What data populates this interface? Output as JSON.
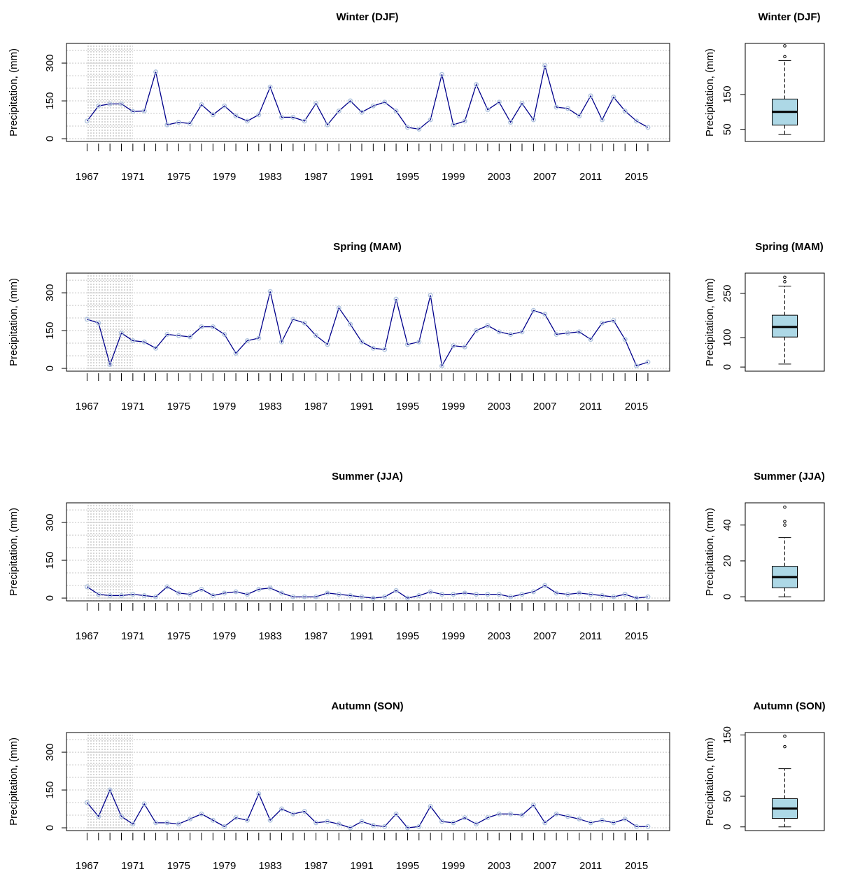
{
  "chart_data": [
    {
      "type": "line",
      "title": "Winter (DJF)",
      "ylabel": "Precipitation, (mm)",
      "x": [
        1967,
        1968,
        1969,
        1970,
        1971,
        1972,
        1973,
        1974,
        1975,
        1976,
        1977,
        1978,
        1979,
        1980,
        1981,
        1982,
        1983,
        1984,
        1985,
        1986,
        1987,
        1988,
        1989,
        1990,
        1991,
        1992,
        1993,
        1994,
        1995,
        1996,
        1997,
        1998,
        1999,
        2000,
        2001,
        2002,
        2003,
        2004,
        2005,
        2006,
        2007,
        2008,
        2009,
        2010,
        2011,
        2012,
        2013,
        2014,
        2015,
        2016
      ],
      "values": [
        70,
        130,
        138,
        138,
        108,
        110,
        265,
        55,
        65,
        60,
        135,
        95,
        130,
        90,
        70,
        95,
        205,
        85,
        85,
        70,
        140,
        55,
        110,
        150,
        105,
        130,
        145,
        110,
        45,
        38,
        75,
        255,
        55,
        70,
        215,
        115,
        145,
        65,
        140,
        75,
        290,
        125,
        120,
        90,
        170,
        75,
        165,
        110,
        70,
        45
      ],
      "color": "#00008b",
      "marker_color": "#b0c4de",
      "xlim": [
        1965.2,
        2017.9
      ],
      "ylim": [
        -11,
        378
      ],
      "xticks": [
        1967,
        1971,
        1975,
        1979,
        1983,
        1987,
        1991,
        1995,
        1999,
        2003,
        2007,
        2011,
        2015
      ],
      "yticks": [
        0,
        150,
        300
      ],
      "ygrid": [
        0,
        50,
        100,
        150,
        200,
        250,
        300,
        350
      ],
      "shaded_xrange": [
        1967,
        1971
      ]
    },
    {
      "type": "box",
      "title": "Winter (DJF)",
      "ylabel": "Precipitation, (mm)",
      "min": 35,
      "q1": 62,
      "median": 100,
      "q3": 137,
      "max": 248,
      "outliers": [
        259,
        290
      ],
      "color": "#add8e6",
      "ylim": [
        15,
        297
      ],
      "yticks": [
        50,
        150
      ]
    },
    {
      "type": "line",
      "title": "Spring (MAM)",
      "ylabel": "Precipitation, (mm)",
      "x": [
        1967,
        1968,
        1969,
        1970,
        1971,
        1972,
        1973,
        1974,
        1975,
        1976,
        1977,
        1978,
        1979,
        1980,
        1981,
        1982,
        1983,
        1984,
        1985,
        1986,
        1987,
        1988,
        1989,
        1990,
        1991,
        1992,
        1993,
        1994,
        1995,
        1996,
        1997,
        1998,
        1999,
        2000,
        2001,
        2002,
        2003,
        2004,
        2005,
        2006,
        2007,
        2008,
        2009,
        2010,
        2011,
        2012,
        2013,
        2014,
        2015,
        2016
      ],
      "values": [
        195,
        180,
        15,
        140,
        110,
        105,
        80,
        135,
        130,
        125,
        165,
        165,
        135,
        60,
        110,
        120,
        305,
        105,
        195,
        180,
        130,
        95,
        240,
        175,
        105,
        80,
        75,
        275,
        95,
        105,
        290,
        10,
        90,
        85,
        150,
        170,
        145,
        135,
        145,
        230,
        215,
        135,
        140,
        145,
        115,
        180,
        190,
        115,
        10,
        25
      ],
      "color": "#00008b",
      "marker_color": "#b0c4de",
      "xlim": [
        1965.2,
        2017.9
      ],
      "ylim": [
        -11,
        378
      ],
      "xticks": [
        1967,
        1971,
        1975,
        1979,
        1983,
        1987,
        1991,
        1995,
        1999,
        2003,
        2007,
        2011,
        2015
      ],
      "yticks": [
        0,
        150,
        300
      ],
      "ygrid": [
        0,
        50,
        100,
        150,
        200,
        250,
        300,
        350
      ],
      "shaded_xrange": [
        1967,
        1971
      ]
    },
    {
      "type": "box",
      "title": "Spring (MAM)",
      "ylabel": "Precipitation, (mm)",
      "min": 10,
      "q1": 102,
      "median": 136,
      "q3": 176,
      "max": 275,
      "outliers": [
        290,
        305
      ],
      "color": "#add8e6",
      "ylim": [
        -14,
        319
      ],
      "yticks": [
        0,
        100,
        250
      ]
    },
    {
      "type": "line",
      "title": "Summer (JJA)",
      "ylabel": "Precipitation, (mm)",
      "x": [
        1967,
        1968,
        1969,
        1970,
        1971,
        1972,
        1973,
        1974,
        1975,
        1976,
        1977,
        1978,
        1979,
        1980,
        1981,
        1982,
        1983,
        1984,
        1985,
        1986,
        1987,
        1988,
        1989,
        1990,
        1991,
        1992,
        1993,
        1994,
        1995,
        1996,
        1997,
        1998,
        1999,
        2000,
        2001,
        2002,
        2003,
        2004,
        2005,
        2006,
        2007,
        2008,
        2009,
        2010,
        2011,
        2012,
        2013,
        2014,
        2015,
        2016
      ],
      "values": [
        45,
        15,
        10,
        10,
        15,
        10,
        5,
        45,
        20,
        15,
        35,
        10,
        20,
        25,
        15,
        35,
        40,
        20,
        5,
        5,
        5,
        20,
        15,
        10,
        5,
        0,
        5,
        30,
        0,
        10,
        25,
        15,
        15,
        20,
        15,
        15,
        15,
        5,
        15,
        25,
        50,
        20,
        15,
        20,
        15,
        10,
        5,
        15,
        0,
        5
      ],
      "color": "#00008b",
      "marker_color": "#b0c4de",
      "xlim": [
        1965.2,
        2017.9
      ],
      "ylim": [
        -11,
        378
      ],
      "xticks": [
        1967,
        1971,
        1975,
        1979,
        1983,
        1987,
        1991,
        1995,
        1999,
        2003,
        2007,
        2011,
        2015
      ],
      "yticks": [
        0,
        150,
        300
      ],
      "ygrid": [
        0,
        50,
        100,
        150,
        200,
        250,
        300,
        350
      ],
      "shaded_xrange": [
        1967,
        1971
      ]
    },
    {
      "type": "box",
      "title": "Summer (JJA)",
      "ylabel": "Precipitation, (mm)",
      "min": 0,
      "q1": 5,
      "median": 11,
      "q3": 17,
      "max": 33,
      "outliers": [
        40,
        42,
        50
      ],
      "color": "#add8e6",
      "ylim": [
        -2.3,
        52.4
      ],
      "yticks": [
        0,
        20,
        40
      ]
    },
    {
      "type": "line",
      "title": "Autumn (SON)",
      "ylabel": "Precipitation, (mm)",
      "x": [
        1967,
        1968,
        1969,
        1970,
        1971,
        1972,
        1973,
        1974,
        1975,
        1976,
        1977,
        1978,
        1979,
        1980,
        1981,
        1982,
        1983,
        1984,
        1985,
        1986,
        1987,
        1988,
        1989,
        1990,
        1991,
        1992,
        1993,
        1994,
        1995,
        1996,
        1997,
        1998,
        1999,
        2000,
        2001,
        2002,
        2003,
        2004,
        2005,
        2006,
        2007,
        2008,
        2009,
        2010,
        2011,
        2012,
        2013,
        2014,
        2015,
        2016
      ],
      "values": [
        100,
        45,
        150,
        45,
        15,
        95,
        20,
        20,
        15,
        35,
        55,
        30,
        5,
        40,
        30,
        135,
        30,
        75,
        55,
        65,
        20,
        25,
        15,
        0,
        25,
        10,
        5,
        55,
        0,
        5,
        85,
        25,
        20,
        40,
        15,
        40,
        55,
        55,
        50,
        90,
        20,
        55,
        45,
        35,
        20,
        30,
        20,
        35,
        5,
        5
      ],
      "color": "#00008b",
      "marker_color": "#b0c4de",
      "xlim": [
        1965.2,
        2017.9
      ],
      "ylim": [
        -11,
        378
      ],
      "xticks": [
        1967,
        1971,
        1975,
        1979,
        1983,
        1987,
        1991,
        1995,
        1999,
        2003,
        2007,
        2011,
        2015
      ],
      "yticks": [
        0,
        150,
        300
      ],
      "ygrid": [
        0,
        50,
        100,
        150,
        200,
        250,
        300,
        350
      ],
      "shaded_xrange": [
        1967,
        1971
      ]
    },
    {
      "type": "box",
      "title": "Autumn (SON)",
      "ylabel": "Precipitation, (mm)",
      "min": 0,
      "q1": 14,
      "median": 30,
      "q3": 46,
      "max": 95,
      "outliers": [
        131,
        148
      ],
      "color": "#add8e6",
      "ylim": [
        -6,
        154
      ],
      "yticks": [
        0,
        50,
        150
      ]
    }
  ]
}
